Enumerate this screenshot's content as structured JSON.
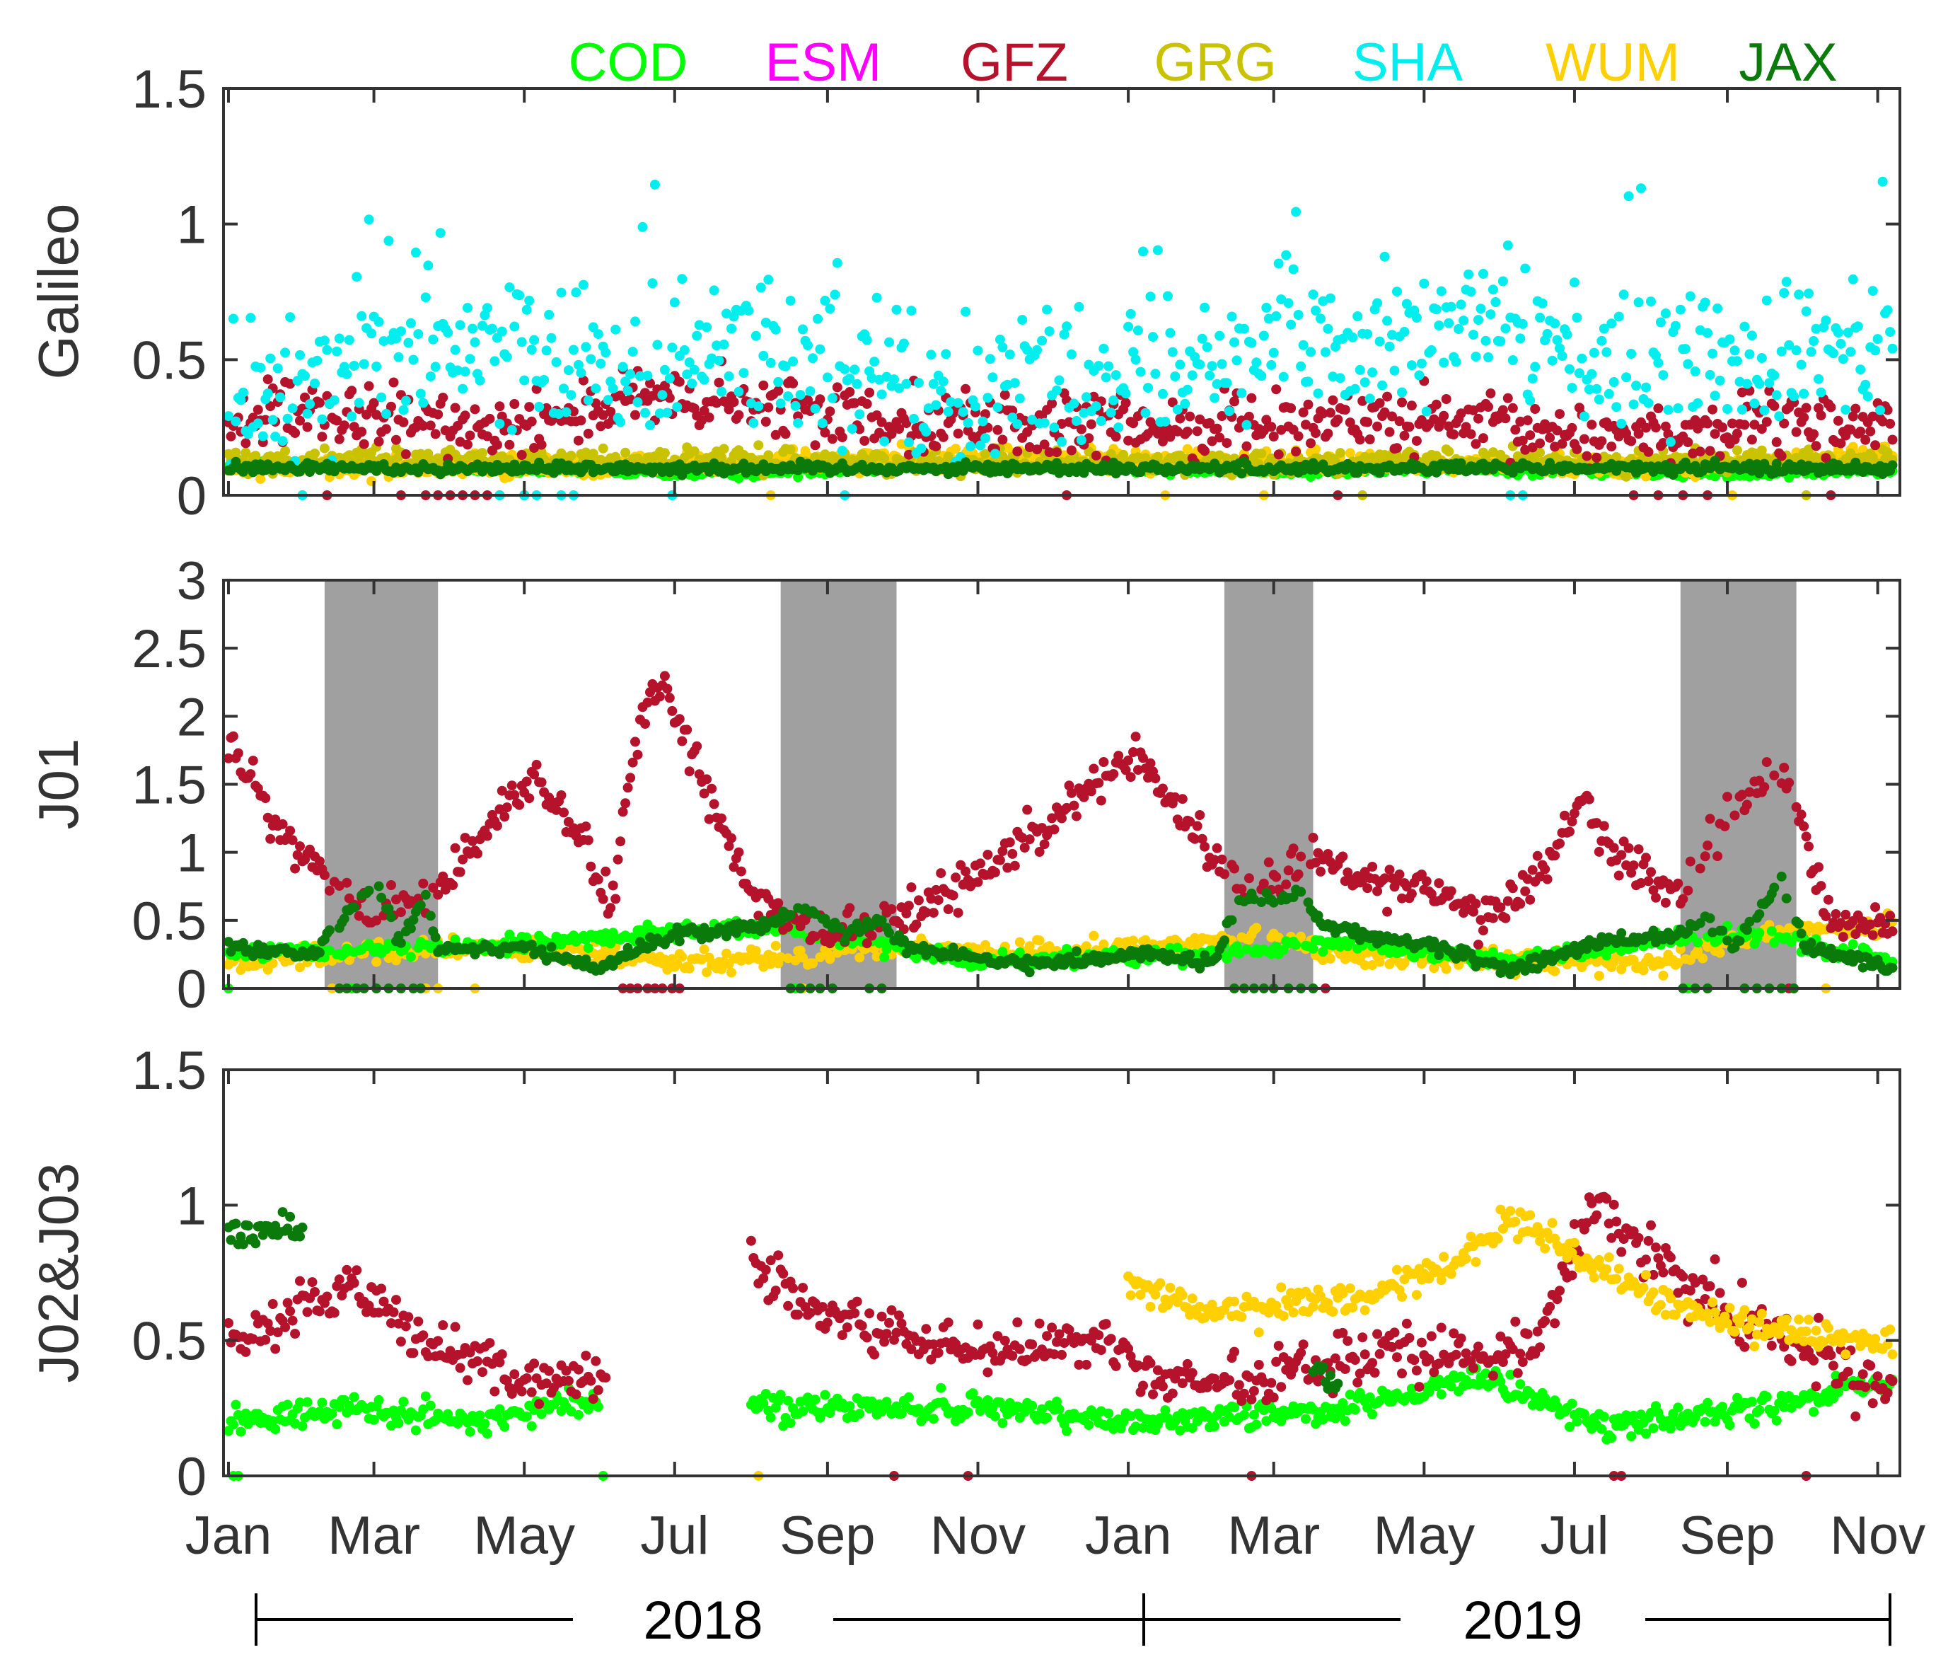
{
  "legend": [
    {
      "label": "COD",
      "color": "#00ff00"
    },
    {
      "label": "ESM",
      "color": "#ff00ff"
    },
    {
      "label": "GFZ",
      "color": "#b5122c"
    },
    {
      "label": "GRG",
      "color": "#c9c200"
    },
    {
      "label": "SHA",
      "color": "#00eeee"
    },
    {
      "label": "WUM",
      "color": "#ffd000"
    },
    {
      "label": "JAX",
      "color": "#0a7a0a"
    }
  ],
  "x_axis": {
    "tick_labels": [
      "Jan",
      "Mar",
      "May",
      "Jul",
      "Sep",
      "Nov",
      "Jan",
      "Mar",
      "May",
      "Jul",
      "Sep",
      "Nov"
    ],
    "tick_days": [
      0,
      59,
      120,
      181,
      243,
      304,
      365,
      424,
      485,
      546,
      608,
      669
    ],
    "range_days": [
      -2,
      678
    ],
    "years": [
      {
        "label": "2018",
        "start_day": 0,
        "end_day": 365
      },
      {
        "label": "2019",
        "start_day": 365,
        "end_day": 675
      }
    ]
  },
  "chart_data": [
    {
      "type": "scatter",
      "ylabel": "Galileo",
      "ylim": [
        0,
        1.5
      ],
      "yticks": [
        0,
        0.5,
        1,
        1.5
      ],
      "ytick_labels": [
        "0",
        "0.5",
        "1",
        "1.5"
      ],
      "shaded_periods": [],
      "series": [
        {
          "name": "COD",
          "anchors": [
            [
              0,
              0.12
            ],
            [
              100,
              0.1
            ],
            [
              200,
              0.08
            ],
            [
              300,
              0.12
            ],
            [
              400,
              0.09
            ],
            [
              500,
              0.1
            ],
            [
              600,
              0.08
            ],
            [
              675,
              0.1
            ]
          ],
          "noise": 0.02,
          "zero_days": []
        },
        {
          "name": "WUM",
          "anchors": [
            [
              0,
              0.1
            ],
            [
              150,
              0.11
            ],
            [
              300,
              0.14
            ],
            [
              450,
              0.12
            ],
            [
              600,
              0.11
            ],
            [
              675,
              0.15
            ]
          ],
          "noise": 0.04,
          "zero_days": [
            220,
            380,
            420,
            610,
            640
          ]
        },
        {
          "name": "GRG",
          "anchors": [
            [
              0,
              0.13
            ],
            [
              200,
              0.13
            ],
            [
              400,
              0.12
            ],
            [
              675,
              0.13
            ]
          ],
          "noise": 0.04,
          "zero_days": [
            30,
            120,
            460,
            640
          ]
        },
        {
          "name": "GFZ",
          "anchors": [
            [
              0,
              0.3
            ],
            [
              100,
              0.25
            ],
            [
              170,
              0.35
            ],
            [
              250,
              0.3
            ],
            [
              350,
              0.24
            ],
            [
              450,
              0.28
            ],
            [
              560,
              0.22
            ],
            [
              675,
              0.27
            ]
          ],
          "noise": 0.12,
          "zero_days": [
            40,
            70,
            80,
            85,
            90,
            95,
            100,
            105,
            110,
            120,
            340,
            450,
            570,
            580,
            590,
            600,
            650
          ]
        },
        {
          "name": "SHA",
          "anchors": [
            [
              0,
              0.25
            ],
            [
              60,
              0.55
            ],
            [
              130,
              0.55
            ],
            [
              200,
              0.5
            ],
            [
              300,
              0.35
            ],
            [
              420,
              0.55
            ],
            [
              520,
              0.6
            ],
            [
              560,
              0.45
            ],
            [
              620,
              0.45
            ],
            [
              675,
              0.6
            ]
          ],
          "noise": 0.25,
          "zero_days": [
            30,
            110,
            120,
            125,
            135,
            140,
            180,
            250,
            520,
            525
          ]
        },
        {
          "name": "JAX",
          "anchors": [
            [
              0,
              0.1
            ],
            [
              675,
              0.1
            ]
          ],
          "noise": 0.02,
          "zero_days": []
        }
      ]
    },
    {
      "type": "scatter",
      "ylabel": "J01",
      "ylim": [
        0,
        3
      ],
      "yticks": [
        0,
        0.5,
        1,
        1.5,
        2,
        2.5,
        3
      ],
      "ytick_labels": [
        "0",
        "0.5",
        "1",
        "1.5",
        "2",
        "2.5",
        "3"
      ],
      "shaded_periods": [
        [
          39,
          85
        ],
        [
          224,
          271
        ],
        [
          404,
          440
        ],
        [
          589,
          636
        ]
      ],
      "series": [
        {
          "name": "WUM",
          "anchors": [
            [
              0,
              0.2
            ],
            [
              100,
              0.3
            ],
            [
              150,
              0.25
            ],
            [
              200,
              0.2
            ],
            [
              260,
              0.3
            ],
            [
              320,
              0.25
            ],
            [
              380,
              0.3
            ],
            [
              420,
              0.4
            ],
            [
              450,
              0.25
            ],
            [
              520,
              0.2
            ],
            [
              580,
              0.2
            ],
            [
              640,
              0.45
            ],
            [
              675,
              0.45
            ]
          ],
          "noise": 0.08,
          "zero_days": [
            42,
            80,
            85,
            100,
            228,
            233,
            240,
            408,
            412,
            648
          ]
        },
        {
          "name": "COD",
          "anchors": [
            [
              0,
              0.25
            ],
            [
              100,
              0.3
            ],
            [
              170,
              0.4
            ],
            [
              220,
              0.45
            ],
            [
              300,
              0.2
            ],
            [
              400,
              0.25
            ],
            [
              450,
              0.35
            ],
            [
              520,
              0.2
            ],
            [
              580,
              0.35
            ],
            [
              620,
              0.4
            ],
            [
              675,
              0.2
            ]
          ],
          "noise": 0.06,
          "zero_days": [
            0,
            50,
            60,
            70,
            230,
            265,
            408,
            430,
            592,
            600,
            620,
            630
          ]
        },
        {
          "name": "GFZ",
          "anchors": [
            [
              0,
              1.8
            ],
            [
              20,
              1.2
            ],
            [
              40,
              0.8
            ],
            [
              60,
              0.5
            ],
            [
              90,
              0.8
            ],
            [
              110,
              1.3
            ],
            [
              125,
              1.55
            ],
            [
              145,
              1.0
            ],
            [
              155,
              0.6
            ],
            [
              165,
              1.8
            ],
            [
              175,
              2.3
            ],
            [
              200,
              1.2
            ],
            [
              215,
              0.6
            ],
            [
              240,
              0.4
            ],
            [
              270,
              0.5
            ],
            [
              310,
              0.9
            ],
            [
              350,
              1.5
            ],
            [
              370,
              1.7
            ],
            [
              390,
              1.2
            ],
            [
              410,
              0.7
            ],
            [
              440,
              1.0
            ],
            [
              460,
              0.8
            ],
            [
              490,
              0.7
            ],
            [
              510,
              0.5
            ],
            [
              530,
              0.8
            ],
            [
              550,
              1.4
            ],
            [
              560,
              1.0
            ],
            [
              590,
              0.7
            ],
            [
              610,
              1.3
            ],
            [
              630,
              1.6
            ],
            [
              650,
              0.5
            ],
            [
              675,
              0.5
            ]
          ],
          "noise": 0.15,
          "zero_days": [
            160,
            163,
            166,
            170,
            173,
            176,
            180,
            183,
            445,
            633
          ]
        },
        {
          "name": "JAX",
          "anchors": [
            [
              0,
              0.3
            ],
            [
              35,
              0.25
            ],
            [
              50,
              0.6
            ],
            [
              60,
              0.8
            ],
            [
              70,
              0.3
            ],
            [
              80,
              0.7
            ],
            [
              85,
              0.3
            ],
            [
              120,
              0.3
            ],
            [
              150,
              0.15
            ],
            [
              180,
              0.4
            ],
            [
              215,
              0.45
            ],
            [
              235,
              0.6
            ],
            [
              250,
              0.4
            ],
            [
              265,
              0.5
            ],
            [
              275,
              0.3
            ],
            [
              320,
              0.18
            ],
            [
              370,
              0.25
            ],
            [
              400,
              0.2
            ],
            [
              410,
              0.65
            ],
            [
              435,
              0.7
            ],
            [
              445,
              0.45
            ],
            [
              490,
              0.3
            ],
            [
              520,
              0.15
            ],
            [
              560,
              0.35
            ],
            [
              590,
              0.4
            ],
            [
              600,
              0.5
            ],
            [
              610,
              0.3
            ],
            [
              630,
              0.8
            ],
            [
              640,
              0.3
            ],
            [
              675,
              0.15
            ]
          ],
          "noise": 0.05,
          "zero_days": [
            45,
            48,
            52,
            55,
            60,
            65,
            70,
            75,
            78,
            228,
            232,
            236,
            240,
            245,
            260,
            265,
            408,
            412,
            416,
            420,
            424,
            430,
            435,
            440,
            590,
            595,
            600,
            615,
            620,
            625,
            630,
            635
          ]
        }
      ]
    },
    {
      "type": "scatter",
      "ylabel": "J02&J03",
      "ylim": [
        0,
        1.5
      ],
      "yticks": [
        0,
        0.5,
        1,
        1.5
      ],
      "ytick_labels": [
        "0",
        "0.5",
        "1",
        "1.5"
      ],
      "shaded_periods": [],
      "series": [
        {
          "name": "COD",
          "anchors": [
            [
              0,
              0.2
            ],
            [
              50,
              0.25
            ],
            [
              100,
              0.2
            ],
            [
              150,
              0.3
            ],
            [
              153,
              null
            ],
            [
              210,
              null
            ],
            [
              212,
              0.25
            ],
            [
              300,
              0.25
            ],
            [
              365,
              0.2
            ],
            [
              450,
              0.25
            ],
            [
              510,
              0.35
            ],
            [
              560,
              0.18
            ],
            [
              620,
              0.25
            ],
            [
              675,
              0.35
            ]
          ],
          "noise": 0.05,
          "zero_days": [
            2,
            4,
            152
          ]
        },
        {
          "name": "GFZ",
          "anchors": [
            [
              0,
              0.5
            ],
            [
              20,
              0.55
            ],
            [
              50,
              0.7
            ],
            [
              80,
              0.5
            ],
            [
              120,
              0.35
            ],
            [
              153,
              0.35
            ],
            [
              154,
              null
            ],
            [
              210,
              null
            ],
            [
              212,
              0.8
            ],
            [
              240,
              0.6
            ],
            [
              300,
              0.45
            ],
            [
              350,
              0.5
            ],
            [
              380,
              0.35
            ],
            [
              420,
              0.35
            ],
            [
              460,
              0.45
            ],
            [
              500,
              0.45
            ],
            [
              530,
              0.5
            ],
            [
              555,
              1.0
            ],
            [
              580,
              0.8
            ],
            [
              620,
              0.55
            ],
            [
              675,
              0.3
            ]
          ],
          "noise": 0.1,
          "zero_days": [
            270,
            300,
            415,
            562,
            565,
            640
          ]
        },
        {
          "name": "WUM",
          "anchors": [
            [
              365,
              0.7
            ],
            [
              400,
              0.6
            ],
            [
              460,
              0.65
            ],
            [
              500,
              0.8
            ],
            [
              520,
              0.95
            ],
            [
              540,
              0.85
            ],
            [
              580,
              0.65
            ],
            [
              620,
              0.55
            ],
            [
              675,
              0.5
            ]
          ],
          "noise": 0.06,
          "zero_days": [
            215
          ]
        },
        {
          "name": "JAX",
          "anchors": [
            [
              0,
              0.9
            ],
            [
              30,
              0.9
            ],
            [
              31,
              null
            ],
            [
              440,
              0.4
            ],
            [
              450,
              0.35
            ],
            [
              451,
              null
            ]
          ],
          "noise": 0.05,
          "zero_days": []
        }
      ]
    }
  ]
}
